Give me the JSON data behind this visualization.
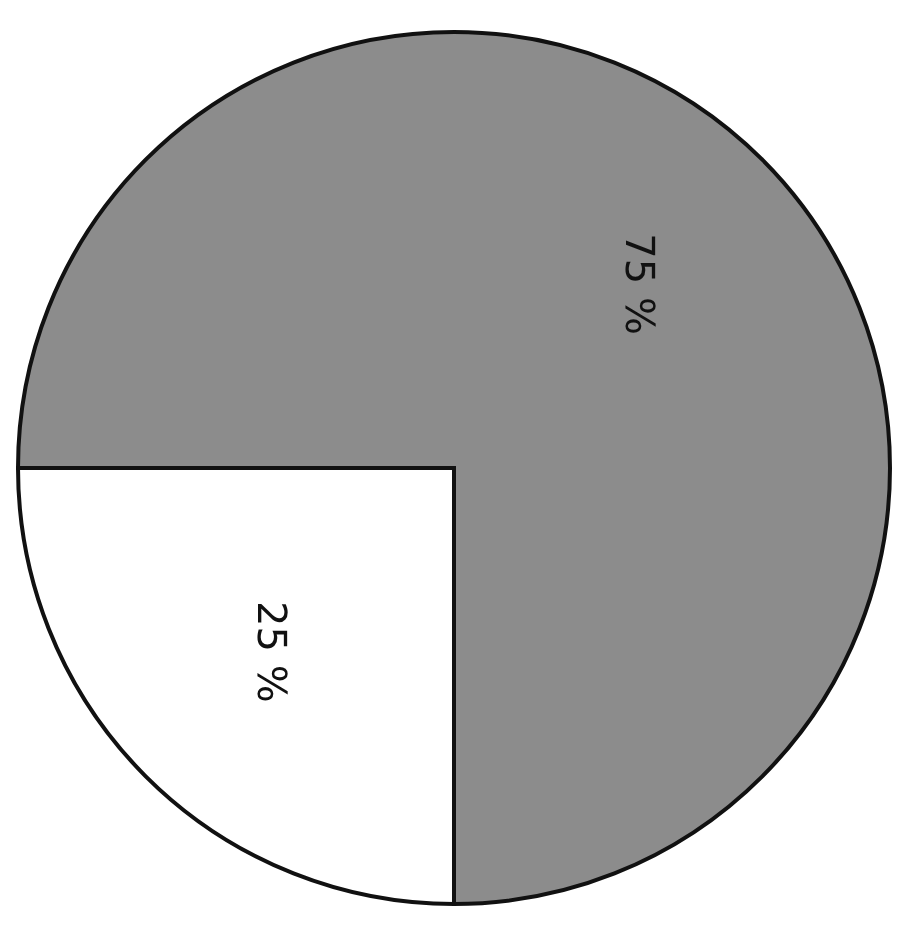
{
  "chart_data": {
    "type": "pie",
    "categories": [
      null,
      null
    ],
    "values": [
      75,
      25
    ],
    "colors": [
      "#8c8c8c",
      "#ffffff"
    ],
    "value_labels": [
      "75 %",
      "25 %"
    ],
    "legend": false
  }
}
